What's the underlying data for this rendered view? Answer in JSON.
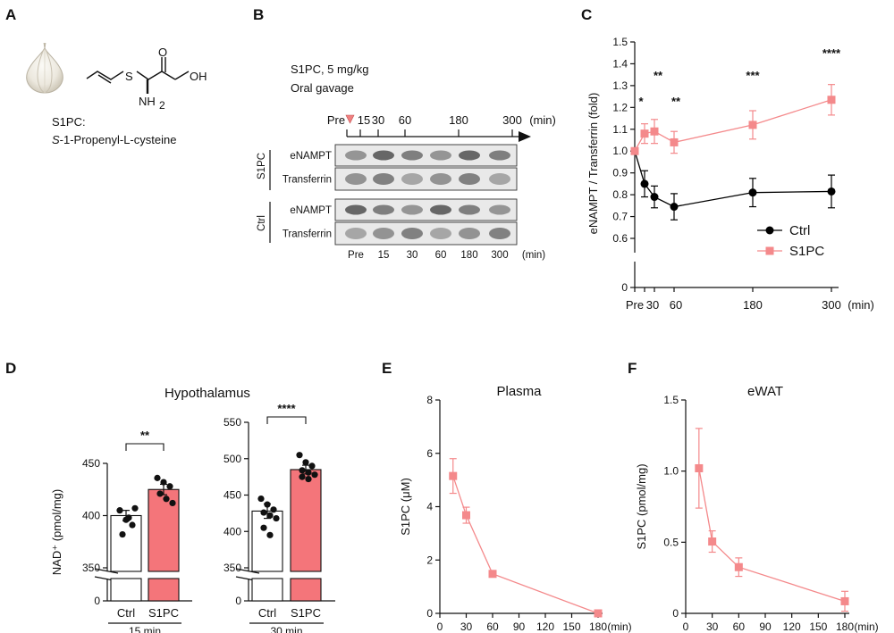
{
  "panels": {
    "A": {
      "letter": "A",
      "compound_code": "S1PC:",
      "compound_name_prefix": "S",
      "compound_name_rest": "-1-Propenyl-L-cysteine",
      "chem_labels": {
        "s": "S",
        "oh": "OH",
        "nh2": "NH",
        "nh2_sub": "2",
        "o": "O"
      },
      "garlic_icon": "garlic-icon"
    },
    "B": {
      "letter": "B",
      "dose": "S1PC, 5 mg/kg",
      "route": "Oral gavage",
      "timeline_ticks": [
        "Pre",
        "15",
        "30",
        "60",
        "180",
        "300"
      ],
      "timeline_unit": "(min)",
      "group_s1pc": "S1PC",
      "group_ctrl": "Ctrl",
      "row_labels": [
        "eNAMPT",
        "Transferrin",
        "eNAMPT",
        "Transferrin"
      ],
      "lane_labels": [
        "Pre",
        "15",
        "30",
        "60",
        "180",
        "300"
      ],
      "lane_unit": "(min)",
      "marker_color": "#f08080"
    },
    "C": {
      "letter": "C"
    },
    "D": {
      "letter": "D",
      "title": "Hypothalamus"
    },
    "E": {
      "letter": "E"
    },
    "F": {
      "letter": "F"
    }
  },
  "chart_data": [
    {
      "id": "C",
      "type": "line",
      "ylabel": "eNAMPT / Transferrin (fold)",
      "xlabel": "",
      "x": [
        0,
        15,
        30,
        60,
        180,
        300
      ],
      "x_tick_labels": [
        "Pre",
        "30",
        "60",
        "180",
        "300"
      ],
      "x_tick_values": [
        0,
        30,
        60,
        180,
        300
      ],
      "x_unit": "(min)",
      "ylim": [
        0.6,
        1.5
      ],
      "y_ticks": [
        0.6,
        0.7,
        0.8,
        0.9,
        1.0,
        1.1,
        1.2,
        1.3,
        1.4,
        1.5
      ],
      "y_tick_labels": [
        "0.6",
        "0.7",
        "0.8",
        "0.9",
        "1.0",
        "1.1",
        "1.2",
        "1.3",
        "1.4",
        "1.5"
      ],
      "y_break_zero": "0",
      "series": [
        {
          "name": "Ctrl",
          "color": "#000000",
          "marker": "circle",
          "values": [
            1.0,
            0.85,
            0.79,
            0.745,
            0.81,
            0.815
          ],
          "errors": [
            0.0,
            0.06,
            0.05,
            0.06,
            0.065,
            0.075
          ]
        },
        {
          "name": "S1PC",
          "color": "#f4898b",
          "marker": "square",
          "values": [
            1.0,
            1.08,
            1.09,
            1.04,
            1.12,
            1.235
          ],
          "errors": [
            0.0,
            0.045,
            0.055,
            0.05,
            0.065,
            0.07
          ]
        }
      ],
      "significance": [
        {
          "x": 15,
          "label": "*"
        },
        {
          "x": 30,
          "label": "**"
        },
        {
          "x": 60,
          "label": "**"
        },
        {
          "x": 180,
          "label": "***"
        },
        {
          "x": 300,
          "label": "****"
        }
      ],
      "legend": "bottom-right"
    },
    {
      "id": "D1",
      "type": "bar",
      "categories": [
        "Ctrl",
        "S1PC"
      ],
      "values": [
        400,
        425
      ],
      "errors": [
        5,
        5
      ],
      "colors": [
        "#ffffff",
        "#f4757a"
      ],
      "ylabel": "NAD⁺ (pmol/mg)",
      "ylim": [
        350,
        450
      ],
      "y_ticks": [
        350,
        400,
        450
      ],
      "y_tick_labels": [
        "350",
        "400",
        "450"
      ],
      "y_break_zero": "0",
      "group_label": "15 min",
      "significance": "**",
      "points": [
        [
          405,
          396,
          391,
          382,
          398,
          407
        ],
        [
          436,
          432,
          428,
          421,
          416,
          412
        ]
      ]
    },
    {
      "id": "D2",
      "type": "bar",
      "categories": [
        "Ctrl",
        "S1PC"
      ],
      "values": [
        428,
        485
      ],
      "errors": [
        10,
        6
      ],
      "colors": [
        "#ffffff",
        "#f4757a"
      ],
      "ylabel": "",
      "ylim": [
        350,
        550
      ],
      "y_ticks": [
        350,
        400,
        450,
        500,
        550
      ],
      "y_tick_labels": [
        "350",
        "400",
        "450",
        "500",
        "550"
      ],
      "y_break_zero": "0",
      "group_label": "30 min",
      "significance": "****",
      "points": [
        [
          445,
          437,
          430,
          426,
          422,
          418,
          405,
          395
        ],
        [
          505,
          495,
          490,
          484,
          481,
          478,
          475,
          472
        ]
      ]
    },
    {
      "id": "E",
      "type": "line",
      "title": "Plasma",
      "ylabel": "S1PC (μM)",
      "x": [
        15,
        30,
        60,
        180
      ],
      "x_ticks": [
        0,
        30,
        60,
        90,
        120,
        150,
        180
      ],
      "x_tick_labels": [
        "0",
        "30",
        "60",
        "90",
        "120",
        "150",
        "180"
      ],
      "x_unit": "(min)",
      "ylim": [
        0,
        8
      ],
      "y_ticks": [
        0,
        2,
        4,
        6,
        8
      ],
      "y_tick_labels": [
        "0",
        "2",
        "4",
        "6",
        "8"
      ],
      "series": [
        {
          "name": "S1PC",
          "color": "#f4898b",
          "marker": "square",
          "values": [
            5.15,
            3.68,
            1.48,
            0.0
          ],
          "errors": [
            0.65,
            0.3,
            0.12,
            0.02
          ]
        }
      ]
    },
    {
      "id": "F",
      "type": "line",
      "title": "eWAT",
      "ylabel": "S1PC (pmol/mg)",
      "x": [
        15,
        30,
        60,
        180
      ],
      "x_ticks": [
        0,
        30,
        60,
        90,
        120,
        150,
        180
      ],
      "x_tick_labels": [
        "0",
        "30",
        "60",
        "90",
        "120",
        "150",
        "180"
      ],
      "x_unit": "(min)",
      "ylim": [
        0,
        1.5
      ],
      "y_ticks": [
        0,
        0.5,
        1.0,
        1.5
      ],
      "y_tick_labels": [
        "0",
        "0.5",
        "1.0",
        "1.5"
      ],
      "series": [
        {
          "name": "S1PC",
          "color": "#f4898b",
          "marker": "square",
          "values": [
            1.02,
            0.505,
            0.325,
            0.085
          ],
          "errors": [
            0.28,
            0.075,
            0.065,
            0.07
          ]
        }
      ]
    }
  ]
}
